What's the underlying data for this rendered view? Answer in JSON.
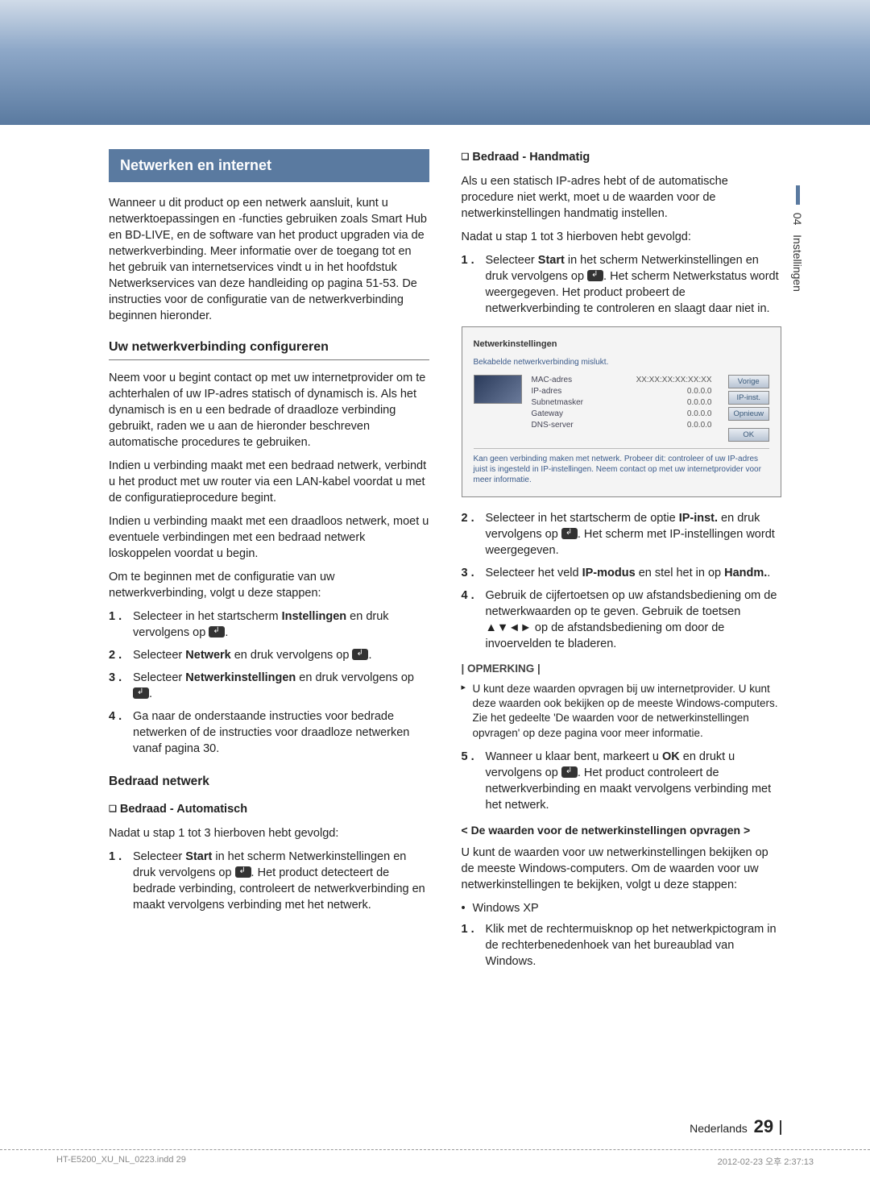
{
  "sidetab": {
    "num": "04",
    "label": "Instellingen"
  },
  "section_title": "Netwerken en internet",
  "left": {
    "intro": "Wanneer u dit product op een netwerk aansluit, kunt u netwerktoepassingen en -functies gebruiken zoals Smart Hub en BD-LIVE, en de software van het product upgraden via de netwerkverbinding. Meer informatie over de toegang tot en het gebruik van internetservices vindt u in het hoofdstuk Netwerkservices van deze handleiding op pagina 51-53. De instructies voor de configuratie van de netwerkverbinding beginnen hieronder.",
    "h_config": "Uw netwerkverbinding configureren",
    "p1": "Neem voor u begint contact op met uw internetprovider om te achterhalen of uw IP-adres statisch of dynamisch is. Als het dynamisch is en u een bedrade of draadloze verbinding gebruikt, raden we u aan de hieronder beschreven automatische procedures te gebruiken.",
    "p2": "Indien u verbinding maakt met een bedraad netwerk, verbindt u het product met uw router via een LAN-kabel voordat u met de configuratieprocedure begint.",
    "p3": "Indien u verbinding maakt met een draadloos netwerk, moet u eventuele verbindingen met een bedraad netwerk loskoppelen voordat u begin.",
    "p4": "Om te beginnen met de configuratie van uw netwerkverbinding, volgt u deze stappen:",
    "steps_a": [
      {
        "n": "1 .",
        "pre": "Selecteer in het startscherm ",
        "bold": "Instellingen",
        "post": " en druk vervolgens op "
      },
      {
        "n": "2 .",
        "pre": "Selecteer ",
        "bold": "Netwerk",
        "post": " en druk vervolgens op "
      },
      {
        "n": "3 .",
        "pre": "Selecteer ",
        "bold": "Netwerkinstellingen",
        "post": " en druk vervolgens op "
      },
      {
        "n": "4 .",
        "text": "Ga naar de onderstaande instructies voor bedrade netwerken of de instructies voor draadloze netwerken vanaf pagina 30."
      }
    ],
    "h_wired": "Bedraad netwerk",
    "h_auto": "Bedraad - Automatisch",
    "p_after": "Nadat u stap 1 tot 3 hierboven hebt gevolgd:",
    "step_auto": {
      "n": "1 .",
      "pre": "Selecteer ",
      "bold": "Start",
      "post": " in het scherm Netwerkinstellingen en druk vervolgens op ",
      "tail": ". Het product detecteert de bedrade verbinding, controleert de netwerkverbinding en maakt vervolgens verbinding met het netwerk."
    }
  },
  "right": {
    "h_manual": "Bedraad - Handmatig",
    "p1": "Als u een statisch IP-adres hebt of de automatische procedure niet werkt, moet u de waarden voor de netwerkinstellingen handmatig instellen.",
    "p_after": "Nadat u stap 1 tot 3 hierboven hebt gevolgd:",
    "step1": {
      "n": "1 .",
      "pre": "Selecteer ",
      "bold": "Start",
      "post": " in het scherm Netwerkinstellingen en druk vervolgens op ",
      "tail": ". Het scherm Netwerkstatus wordt weergegeven. Het product probeert de netwerkverbinding te controleren en slaagt daar niet in."
    },
    "ss": {
      "title": "Netwerkinstellingen",
      "sub": "Bekabelde netwerkverbinding mislukt.",
      "rows": [
        {
          "k": "MAC-adres",
          "v": "XX:XX:XX:XX:XX:XX"
        },
        {
          "k": "IP-adres",
          "v": "0.0.0.0"
        },
        {
          "k": "Subnetmasker",
          "v": "0.0.0.0"
        },
        {
          "k": "Gateway",
          "v": "0.0.0.0"
        },
        {
          "k": "DNS-server",
          "v": "0.0.0.0"
        }
      ],
      "btns": {
        "prev": "Vorige",
        "ip": "IP-inst.",
        "retry": "Opnieuw",
        "ok": "OK"
      },
      "msg": "Kan geen verbinding maken met netwerk. Probeer dit: controleer of uw IP-adres juist is ingesteld in IP-instellingen. Neem contact op met uw internetprovider voor meer informatie."
    },
    "step2": {
      "n": "2 .",
      "pre": "Selecteer in het startscherm de optie ",
      "bold": "IP-inst.",
      "post": " en druk vervolgens op ",
      "tail": ". Het scherm met IP-instellingen wordt weergegeven."
    },
    "step3": {
      "n": "3 .",
      "pre": "Selecteer het veld ",
      "bold": "IP-modus",
      "post": " en stel het in op ",
      "bold2": "Handm.",
      "post2": "."
    },
    "step4": {
      "n": "4 .",
      "text": "Gebruik de cijfertoetsen op uw afstandsbediening om de netwerkwaarden op te geven. Gebruik de toetsen ▲▼◄► op de afstandsbediening om door de invoervelden te bladeren."
    },
    "note_hdr": "| OPMERKING |",
    "note": "U kunt deze waarden opvragen bij uw internetprovider. U kunt deze waarden ook bekijken op de meeste Windows-computers. Zie het gedeelte 'De waarden voor de netwerkinstellingen opvragen' op deze pagina voor meer informatie.",
    "step5": {
      "n": "5 .",
      "pre": "Wanneer u klaar bent, markeert u ",
      "bold": "OK",
      "post": " en drukt u vervolgens op ",
      "tail": ". Het product controleert de netwerkverbinding en maakt vervolgens verbinding met het netwerk."
    },
    "angle_hdr": "< De waarden voor de netwerkinstellingen opvragen >",
    "p2": "U kunt de waarden voor uw netwerkinstellingen bekijken op de meeste Windows-computers. Om de waarden voor uw netwerkinstellingen te bekijken, volgt u deze stappen:",
    "bul": "Windows XP",
    "stepxp": {
      "n": "1 .",
      "text": "Klik met de rechtermuisknop op het netwerkpictogram in de rechterbenedenhoek van het bureaublad van Windows."
    }
  },
  "footer": {
    "lang": "Nederlands",
    "page": "29"
  },
  "footline": {
    "left": "HT-E5200_XU_NL_0223.indd   29",
    "right": "2012-02-23   오후 2:37:13"
  }
}
